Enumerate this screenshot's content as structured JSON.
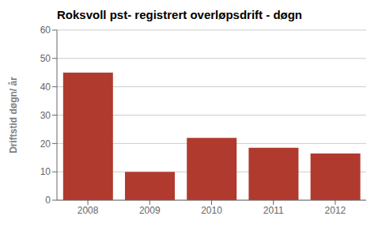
{
  "chart_data": {
    "type": "bar",
    "title": "Roksvoll pst- registrert overløpsdrift - døgn",
    "categories": [
      "2008",
      "2009",
      "2010",
      "2011",
      "2012"
    ],
    "values": [
      45,
      10,
      22,
      18.5,
      16.5
    ],
    "color": "#b03a2e",
    "ylabel": "Driftstid døgn/ år",
    "ylim": [
      0,
      60
    ],
    "yticks": [
      0,
      10,
      20,
      30,
      40,
      50,
      60
    ],
    "grid": true
  }
}
